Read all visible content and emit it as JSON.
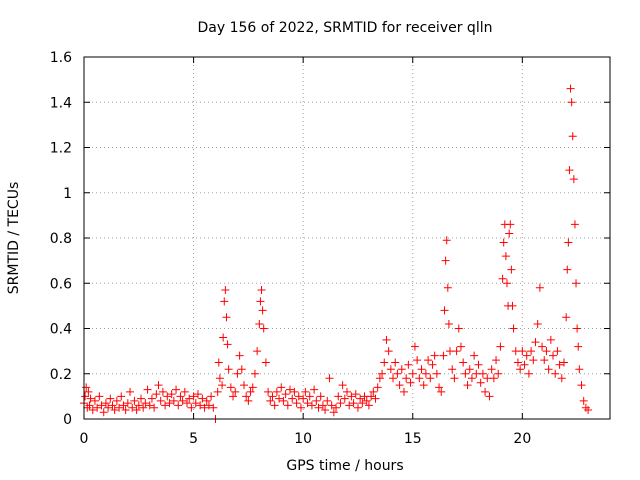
{
  "chart_data": {
    "type": "scatter",
    "title": "Day 156 of 2022, SRMTID for receiver qlln",
    "xlabel": "GPS time / hours",
    "ylabel": "SRMTID / TECUs",
    "xlim": [
      0,
      24
    ],
    "ylim": [
      0,
      1.6
    ],
    "x_ticks": [
      0,
      5,
      10,
      15,
      20
    ],
    "x_tick_labels": [
      "0",
      "5",
      "10",
      "15",
      "20"
    ],
    "y_ticks": [
      0,
      0.2,
      0.4,
      0.6,
      0.8,
      1,
      1.2,
      1.4,
      1.6
    ],
    "y_tick_labels": [
      "0",
      "0.2",
      "0.4",
      "0.6",
      "0.8",
      "1",
      "1.2",
      "1.4",
      "1.6"
    ],
    "grid": true,
    "marker": "+",
    "series": [
      {
        "name": "SRMTID",
        "color": "#ff0000",
        "points": [
          [
            0.0,
            0.07
          ],
          [
            0.05,
            0.1
          ],
          [
            0.1,
            0.14
          ],
          [
            0.15,
            0.05
          ],
          [
            0.2,
            0.12
          ],
          [
            0.25,
            0.06
          ],
          [
            0.3,
            0.09
          ],
          [
            0.4,
            0.04
          ],
          [
            0.5,
            0.08
          ],
          [
            0.6,
            0.05
          ],
          [
            0.7,
            0.1
          ],
          [
            0.8,
            0.06
          ],
          [
            0.9,
            0.03
          ],
          [
            1.0,
            0.07
          ],
          [
            1.1,
            0.05
          ],
          [
            1.2,
            0.09
          ],
          [
            1.3,
            0.06
          ],
          [
            1.4,
            0.04
          ],
          [
            1.5,
            0.08
          ],
          [
            1.6,
            0.05
          ],
          [
            1.7,
            0.1
          ],
          [
            1.8,
            0.06
          ],
          [
            1.9,
            0.04
          ],
          [
            2.0,
            0.07
          ],
          [
            2.1,
            0.12
          ],
          [
            2.2,
            0.05
          ],
          [
            2.3,
            0.08
          ],
          [
            2.4,
            0.04
          ],
          [
            2.5,
            0.06
          ],
          [
            2.6,
            0.09
          ],
          [
            2.7,
            0.05
          ],
          [
            2.8,
            0.07
          ],
          [
            2.9,
            0.13
          ],
          [
            3.0,
            0.06
          ],
          [
            3.1,
            0.09
          ],
          [
            3.2,
            0.05
          ],
          [
            3.3,
            0.11
          ],
          [
            3.4,
            0.15
          ],
          [
            3.5,
            0.08
          ],
          [
            3.6,
            0.12
          ],
          [
            3.7,
            0.06
          ],
          [
            3.8,
            0.1
          ],
          [
            3.9,
            0.07
          ],
          [
            4.0,
            0.11
          ],
          [
            4.1,
            0.08
          ],
          [
            4.2,
            0.13
          ],
          [
            4.3,
            0.06
          ],
          [
            4.4,
            0.1
          ],
          [
            4.5,
            0.08
          ],
          [
            4.6,
            0.12
          ],
          [
            4.7,
            0.07
          ],
          [
            4.8,
            0.09
          ],
          [
            4.9,
            0.05
          ],
          [
            5.0,
            0.1
          ],
          [
            5.1,
            0.07
          ],
          [
            5.2,
            0.11
          ],
          [
            5.3,
            0.06
          ],
          [
            5.4,
            0.09
          ],
          [
            5.5,
            0.05
          ],
          [
            5.6,
            0.08
          ],
          [
            5.7,
            0.06
          ],
          [
            5.8,
            0.1
          ],
          [
            5.9,
            0.05
          ],
          [
            6.0,
            0.0
          ],
          [
            6.1,
            0.12
          ],
          [
            6.15,
            0.25
          ],
          [
            6.2,
            0.18
          ],
          [
            6.3,
            0.15
          ],
          [
            6.35,
            0.36
          ],
          [
            6.4,
            0.52
          ],
          [
            6.45,
            0.57
          ],
          [
            6.5,
            0.45
          ],
          [
            6.55,
            0.33
          ],
          [
            6.6,
            0.22
          ],
          [
            6.7,
            0.14
          ],
          [
            6.8,
            0.1
          ],
          [
            6.9,
            0.12
          ],
          [
            7.0,
            0.2
          ],
          [
            7.1,
            0.28
          ],
          [
            7.2,
            0.22
          ],
          [
            7.3,
            0.15
          ],
          [
            7.4,
            0.1
          ],
          [
            7.5,
            0.08
          ],
          [
            7.6,
            0.12
          ],
          [
            7.7,
            0.14
          ],
          [
            7.8,
            0.2
          ],
          [
            7.9,
            0.3
          ],
          [
            8.0,
            0.42
          ],
          [
            8.05,
            0.52
          ],
          [
            8.1,
            0.57
          ],
          [
            8.15,
            0.48
          ],
          [
            8.2,
            0.4
          ],
          [
            8.3,
            0.25
          ],
          [
            8.4,
            0.12
          ],
          [
            8.5,
            0.08
          ],
          [
            8.6,
            0.1
          ],
          [
            8.7,
            0.06
          ],
          [
            8.8,
            0.12
          ],
          [
            8.9,
            0.09
          ],
          [
            9.0,
            0.14
          ],
          [
            9.1,
            0.08
          ],
          [
            9.2,
            0.11
          ],
          [
            9.3,
            0.06
          ],
          [
            9.4,
            0.13
          ],
          [
            9.5,
            0.09
          ],
          [
            9.6,
            0.12
          ],
          [
            9.7,
            0.07
          ],
          [
            9.8,
            0.1
          ],
          [
            9.9,
            0.05
          ],
          [
            10.0,
            0.09
          ],
          [
            10.1,
            0.12
          ],
          [
            10.2,
            0.07
          ],
          [
            10.3,
            0.1
          ],
          [
            10.4,
            0.06
          ],
          [
            10.5,
            0.13
          ],
          [
            10.6,
            0.08
          ],
          [
            10.7,
            0.05
          ],
          [
            10.8,
            0.1
          ],
          [
            10.9,
            0.06
          ],
          [
            11.0,
            0.04
          ],
          [
            11.1,
            0.08
          ],
          [
            11.2,
            0.18
          ],
          [
            11.3,
            0.06
          ],
          [
            11.4,
            0.03
          ],
          [
            11.5,
            0.05
          ],
          [
            11.6,
            0.1
          ],
          [
            11.7,
            0.07
          ],
          [
            11.8,
            0.15
          ],
          [
            11.9,
            0.09
          ],
          [
            12.0,
            0.12
          ],
          [
            12.1,
            0.06
          ],
          [
            12.2,
            0.1
          ],
          [
            12.3,
            0.07
          ],
          [
            12.4,
            0.11
          ],
          [
            12.5,
            0.05
          ],
          [
            12.6,
            0.09
          ],
          [
            12.7,
            0.07
          ],
          [
            12.8,
            0.1
          ],
          [
            12.9,
            0.08
          ],
          [
            13.0,
            0.06
          ],
          [
            13.1,
            0.1
          ],
          [
            13.2,
            0.12
          ],
          [
            13.3,
            0.09
          ],
          [
            13.4,
            0.14
          ],
          [
            13.5,
            0.18
          ],
          [
            13.6,
            0.2
          ],
          [
            13.7,
            0.25
          ],
          [
            13.8,
            0.35
          ],
          [
            13.9,
            0.3
          ],
          [
            14.0,
            0.22
          ],
          [
            14.1,
            0.18
          ],
          [
            14.2,
            0.25
          ],
          [
            14.3,
            0.2
          ],
          [
            14.4,
            0.15
          ],
          [
            14.5,
            0.22
          ],
          [
            14.6,
            0.12
          ],
          [
            14.7,
            0.18
          ],
          [
            14.8,
            0.24
          ],
          [
            14.9,
            0.16
          ],
          [
            15.0,
            0.2
          ],
          [
            15.1,
            0.32
          ],
          [
            15.2,
            0.26
          ],
          [
            15.3,
            0.18
          ],
          [
            15.4,
            0.22
          ],
          [
            15.5,
            0.15
          ],
          [
            15.6,
            0.2
          ],
          [
            15.7,
            0.26
          ],
          [
            15.8,
            0.18
          ],
          [
            15.9,
            0.24
          ],
          [
            16.0,
            0.28
          ],
          [
            16.1,
            0.2
          ],
          [
            16.2,
            0.14
          ],
          [
            16.3,
            0.12
          ],
          [
            16.4,
            0.28
          ],
          [
            16.45,
            0.48
          ],
          [
            16.5,
            0.7
          ],
          [
            16.55,
            0.79
          ],
          [
            16.6,
            0.58
          ],
          [
            16.65,
            0.42
          ],
          [
            16.7,
            0.3
          ],
          [
            16.8,
            0.22
          ],
          [
            16.9,
            0.18
          ],
          [
            17.0,
            0.3
          ],
          [
            17.1,
            0.4
          ],
          [
            17.2,
            0.32
          ],
          [
            17.3,
            0.25
          ],
          [
            17.4,
            0.2
          ],
          [
            17.5,
            0.15
          ],
          [
            17.6,
            0.22
          ],
          [
            17.7,
            0.18
          ],
          [
            17.8,
            0.28
          ],
          [
            17.9,
            0.2
          ],
          [
            18.0,
            0.24
          ],
          [
            18.1,
            0.16
          ],
          [
            18.2,
            0.2
          ],
          [
            18.3,
            0.12
          ],
          [
            18.4,
            0.18
          ],
          [
            18.5,
            0.1
          ],
          [
            18.6,
            0.22
          ],
          [
            18.7,
            0.18
          ],
          [
            18.8,
            0.26
          ],
          [
            18.9,
            0.2
          ],
          [
            19.0,
            0.32
          ],
          [
            19.1,
            0.62
          ],
          [
            19.15,
            0.78
          ],
          [
            19.2,
            0.86
          ],
          [
            19.25,
            0.72
          ],
          [
            19.3,
            0.6
          ],
          [
            19.35,
            0.5
          ],
          [
            19.4,
            0.82
          ],
          [
            19.45,
            0.86
          ],
          [
            19.5,
            0.66
          ],
          [
            19.55,
            0.5
          ],
          [
            19.6,
            0.4
          ],
          [
            19.7,
            0.3
          ],
          [
            19.8,
            0.25
          ],
          [
            19.9,
            0.22
          ],
          [
            20.0,
            0.3
          ],
          [
            20.1,
            0.24
          ],
          [
            20.2,
            0.28
          ],
          [
            20.3,
            0.2
          ],
          [
            20.4,
            0.3
          ],
          [
            20.5,
            0.26
          ],
          [
            20.6,
            0.34
          ],
          [
            20.7,
            0.42
          ],
          [
            20.8,
            0.58
          ],
          [
            20.9,
            0.32
          ],
          [
            21.0,
            0.26
          ],
          [
            21.1,
            0.3
          ],
          [
            21.2,
            0.22
          ],
          [
            21.3,
            0.35
          ],
          [
            21.4,
            0.28
          ],
          [
            21.5,
            0.2
          ],
          [
            21.6,
            0.3
          ],
          [
            21.7,
            0.24
          ],
          [
            21.8,
            0.18
          ],
          [
            21.9,
            0.25
          ],
          [
            22.0,
            0.45
          ],
          [
            22.05,
            0.66
          ],
          [
            22.1,
            0.78
          ],
          [
            22.15,
            1.1
          ],
          [
            22.2,
            1.46
          ],
          [
            22.25,
            1.4
          ],
          [
            22.3,
            1.25
          ],
          [
            22.35,
            1.06
          ],
          [
            22.4,
            0.86
          ],
          [
            22.45,
            0.6
          ],
          [
            22.5,
            0.4
          ],
          [
            22.55,
            0.32
          ],
          [
            22.6,
            0.22
          ],
          [
            22.7,
            0.15
          ],
          [
            22.8,
            0.08
          ],
          [
            22.9,
            0.05
          ],
          [
            23.0,
            0.04
          ]
        ]
      }
    ]
  }
}
